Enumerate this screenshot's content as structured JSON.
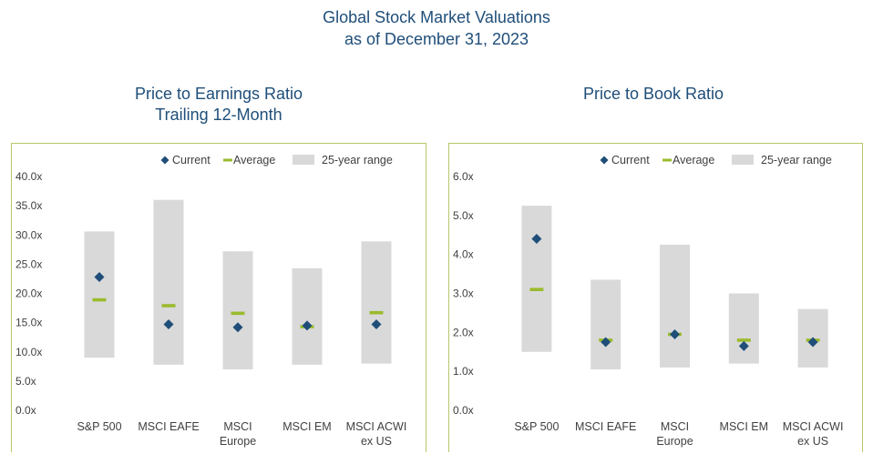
{
  "title": {
    "line1": "Global Stock Market Valuations",
    "line2": "as of December 31, 2023"
  },
  "colors": {
    "title": "#1f4e79",
    "current": "#1f4e79",
    "average": "#9bbb2e",
    "range": "#d9d9d9",
    "border": "#b3c86a",
    "axis_text": "#404040"
  },
  "chart_data": [
    {
      "type": "range-marker",
      "title": "Price to Earnings Ratio",
      "subtitle": "Trailing 12-Month",
      "legend": {
        "current": "Current",
        "average": "Average",
        "range": "25-year range"
      },
      "categories": [
        "S&P 500",
        "MSCI EAFE",
        "MSCI Europe",
        "MSCI EM",
        "MSCI ACWI ex US"
      ],
      "category_lines": [
        [
          "S&P 500"
        ],
        [
          "MSCI EAFE"
        ],
        [
          "MSCI",
          "Europe"
        ],
        [
          "MSCI EM"
        ],
        [
          "MSCI ACWI",
          "ex US"
        ]
      ],
      "range_low": [
        9.0,
        7.8,
        7.0,
        7.8,
        8.0
      ],
      "range_high": [
        30.6,
        36.0,
        27.2,
        24.3,
        28.9
      ],
      "current": [
        22.8,
        14.7,
        14.2,
        14.5,
        14.7
      ],
      "average": [
        18.9,
        17.9,
        16.6,
        14.3,
        16.7
      ],
      "ylim": [
        0,
        40
      ],
      "yticks": [
        0,
        5,
        10,
        15,
        20,
        25,
        30,
        35,
        40
      ],
      "ytick_labels": [
        "0.0x",
        "5.0x",
        "10.0x",
        "15.0x",
        "20.0x",
        "25.0x",
        "30.0x",
        "35.0x",
        "40.0x"
      ]
    },
    {
      "type": "range-marker",
      "title": "Price to Book Ratio",
      "legend": {
        "current": "Current",
        "average": "Average",
        "range": "25-year range"
      },
      "categories": [
        "S&P 500",
        "MSCI EAFE",
        "MSCI Europe",
        "MSCI EM",
        "MSCI ACWI ex US"
      ],
      "category_lines": [
        [
          "S&P 500"
        ],
        [
          "MSCI EAFE"
        ],
        [
          "MSCI",
          "Europe"
        ],
        [
          "MSCI EM"
        ],
        [
          "MSCI ACWI",
          "ex US"
        ]
      ],
      "range_low": [
        1.5,
        1.05,
        1.1,
        1.2,
        1.1
      ],
      "range_high": [
        5.25,
        3.35,
        4.25,
        3.0,
        2.6
      ],
      "current": [
        4.4,
        1.75,
        1.95,
        1.65,
        1.75
      ],
      "average": [
        3.1,
        1.8,
        1.95,
        1.8,
        1.8
      ],
      "ylim": [
        0,
        6
      ],
      "yticks": [
        0,
        1,
        2,
        3,
        4,
        5,
        6
      ],
      "ytick_labels": [
        "0.0x",
        "1.0x",
        "2.0x",
        "3.0x",
        "4.0x",
        "5.0x",
        "6.0x"
      ]
    }
  ]
}
